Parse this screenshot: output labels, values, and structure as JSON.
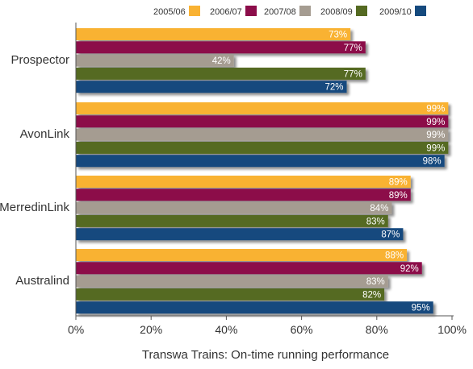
{
  "chart_data": {
    "type": "bar",
    "orientation": "horizontal",
    "title": "Transwa Trains: On-time running performance",
    "categories": [
      "Prospector",
      "AvonLink",
      "MerredinLink",
      "Australind"
    ],
    "series": [
      {
        "name": "2005/06",
        "color": "#F9B233",
        "values": [
          73,
          99,
          89,
          88
        ],
        "labels": [
          "73%",
          "99%",
          "89%",
          "88%"
        ]
      },
      {
        "name": "2006/07",
        "color": "#8C0D4A",
        "values": [
          77,
          99,
          89,
          92
        ],
        "labels": [
          "77%",
          "99%",
          "89%",
          "92%"
        ]
      },
      {
        "name": "2007/08",
        "color": "#A59C91",
        "values": [
          42,
          99,
          84,
          83
        ],
        "labels": [
          "42%",
          "99%",
          "84%",
          "83%"
        ]
      },
      {
        "name": "2008/09",
        "color": "#556A22",
        "values": [
          77,
          99,
          83,
          82
        ],
        "labels": [
          "77%",
          "99%",
          "83%",
          "82%"
        ]
      },
      {
        "name": "2009/10",
        "color": "#154A7E",
        "values": [
          72,
          98,
          87,
          95
        ],
        "labels": [
          "72%",
          "98%",
          "87%",
          "95%"
        ]
      }
    ],
    "xlim": [
      0,
      100
    ],
    "x_ticks": [
      "0%",
      "20%",
      "40%",
      "60%",
      "80%",
      "100%"
    ],
    "x_tick_values": [
      0,
      20,
      40,
      60,
      80,
      100
    ],
    "legend_position": "top-right",
    "grid": false
  }
}
